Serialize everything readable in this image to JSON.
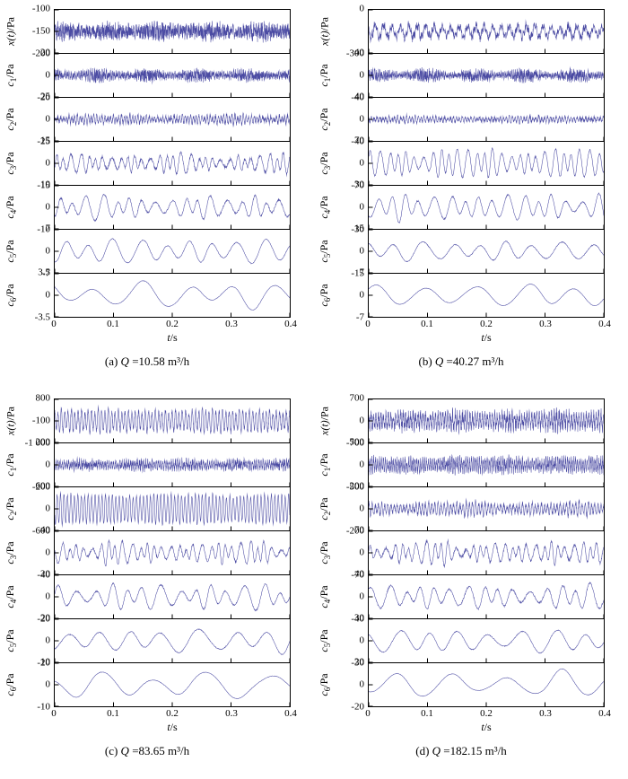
{
  "figure": {
    "line_color": "#4b4ba3",
    "axis_color": "#000000",
    "xlabel": {
      "var": "t",
      "unit": "/s"
    },
    "xticks": [
      "0",
      "0.1",
      "0.2",
      "0.3",
      "0.4"
    ],
    "x_range": [
      0,
      0.4
    ]
  },
  "chart_data": [
    {
      "type": "line",
      "caption": {
        "index": "(a)",
        "symbol": "Q",
        "rest": " =10.58 m³/h"
      },
      "subplots": [
        {
          "ylabel": {
            "var": "x(t)",
            "sub": "",
            "unit": "/Pa"
          },
          "yticks": [
            "-100",
            "-150",
            "-200"
          ],
          "ylim": [
            -200,
            -100
          ],
          "center": -150,
          "gen": {
            "points": 1400,
            "cycles": 90,
            "amp": 0.12,
            "mod": 0.3,
            "noise": 0.42,
            "nmod": 0.3
          }
        },
        {
          "ylabel": {
            "var": "c",
            "sub": "1",
            "unit": "/Pa"
          },
          "yticks": [
            "20",
            "0",
            "-20"
          ],
          "ylim": [
            -20,
            20
          ],
          "gen": {
            "points": 1400,
            "cycles": 120,
            "amp": 0.1,
            "mod": 0.4,
            "noise": 0.3,
            "nmod": 0.55
          }
        },
        {
          "ylabel": {
            "var": "c",
            "sub": "2",
            "unit": "/Pa"
          },
          "yticks": [
            "25",
            "0",
            "-25"
          ],
          "ylim": [
            -25,
            25
          ],
          "gen": {
            "points": 1200,
            "cycles": 85,
            "amp": 0.2,
            "amp2": 0.07,
            "cycles2": 58,
            "mod": 0.55,
            "noise": 0.1,
            "nmod": 0.3
          }
        },
        {
          "ylabel": {
            "var": "c",
            "sub": "3",
            "unit": "/Pa"
          },
          "yticks": [
            "15",
            "0",
            "-15"
          ],
          "ylim": [
            -15,
            15
          ],
          "gen": {
            "points": 900,
            "cycles": 30,
            "amp": 0.38,
            "amp2": 0.15,
            "cycles2": 21,
            "mod": 0.45,
            "jitter": 1.4,
            "noise": 0.06
          }
        },
        {
          "ylabel": {
            "var": "c",
            "sub": "4",
            "unit": "/Pa"
          },
          "yticks": [
            "10",
            "0",
            "-10"
          ],
          "ylim": [
            -10,
            10
          ],
          "gen": {
            "points": 800,
            "cycles": 17,
            "amp": 0.45,
            "amp2": 0.18,
            "cycles2": 11,
            "mod": 0.4,
            "jitter": 1.2,
            "noise": 0.04
          }
        },
        {
          "ylabel": {
            "var": "c",
            "sub": "5",
            "unit": "/Pa"
          },
          "yticks": [
            "7",
            "0",
            "-7"
          ],
          "ylim": [
            -7,
            7
          ],
          "gen": {
            "points": 700,
            "cycles": 9.5,
            "amp": 0.5,
            "amp2": 0.15,
            "cycles2": 6,
            "mod": 0.35,
            "jitter": 0.8,
            "noise": 0.02
          }
        },
        {
          "ylabel": {
            "var": "c",
            "sub": "6",
            "unit": "/Pa"
          },
          "yticks": [
            "3.5",
            "0",
            "-3.5"
          ],
          "ylim": [
            -3.5,
            3.5
          ],
          "gen": {
            "points": 600,
            "cycles": 5.2,
            "amp": 0.5,
            "amp2": 0.2,
            "cycles2": 3.1,
            "mod": 0.35,
            "jitter": 0.6,
            "noise": 0.01
          }
        }
      ]
    },
    {
      "type": "line",
      "caption": {
        "index": "(b)",
        "symbol": "Q",
        "rest": " =40.27 m³/h"
      },
      "subplots": [
        {
          "ylabel": {
            "var": "x(t)",
            "sub": "",
            "unit": "/Pa"
          },
          "yticks": [
            "0",
            "-300"
          ],
          "ylim": [
            -300,
            0
          ],
          "center": -150,
          "gen": {
            "points": 1200,
            "cycles": 28,
            "amp": 0.3,
            "amp2": 0.12,
            "cycles2": 90,
            "mod": 0.4,
            "noise": 0.18,
            "nmod": 0.3
          }
        },
        {
          "ylabel": {
            "var": "c",
            "sub": "1",
            "unit": "/Pa"
          },
          "yticks": [
            "40",
            "0",
            "-40"
          ],
          "ylim": [
            -40,
            40
          ],
          "gen": {
            "points": 1400,
            "cycles": 130,
            "amp": 0.1,
            "mod": 0.4,
            "noise": 0.3,
            "nmod": 0.6
          }
        },
        {
          "ylabel": {
            "var": "c",
            "sub": "2",
            "unit": "/Pa"
          },
          "yticks": [
            "40",
            "0",
            "-40"
          ],
          "ylim": [
            -40,
            40
          ],
          "gen": {
            "points": 1200,
            "cycles": 80,
            "amp": 0.14,
            "amp2": 0.05,
            "cycles2": 55,
            "mod": 0.55,
            "noise": 0.08,
            "nmod": 0.4
          }
        },
        {
          "ylabel": {
            "var": "c",
            "sub": "3",
            "unit": "/Pa"
          },
          "yticks": [
            "70",
            "0",
            "-70"
          ],
          "ylim": [
            -70,
            70
          ],
          "gen": {
            "points": 900,
            "cycles": 27,
            "amp": 0.6,
            "amp2": 0.18,
            "cycles2": 19,
            "mod": 0.4,
            "jitter": 1.0,
            "noise": 0.04
          }
        },
        {
          "ylabel": {
            "var": "c",
            "sub": "4",
            "unit": "/Pa"
          },
          "yticks": [
            "30",
            "0",
            "-30"
          ],
          "ylim": [
            -30,
            30
          ],
          "gen": {
            "points": 800,
            "cycles": 16,
            "amp": 0.55,
            "amp2": 0.2,
            "cycles2": 10,
            "mod": 0.45,
            "jitter": 1.0,
            "noise": 0.03
          }
        },
        {
          "ylabel": {
            "var": "c",
            "sub": "5",
            "unit": "/Pa"
          },
          "yticks": [
            "15",
            "0",
            "-15"
          ],
          "ylim": [
            -15,
            15
          ],
          "gen": {
            "points": 700,
            "cycles": 8.5,
            "amp": 0.42,
            "amp2": 0.12,
            "cycles2": 5.2,
            "mod": 0.4,
            "jitter": 0.7,
            "noise": 0.02
          }
        },
        {
          "ylabel": {
            "var": "c",
            "sub": "6",
            "unit": "/Pa"
          },
          "yticks": [
            "7",
            "0",
            "-7"
          ],
          "ylim": [
            -7,
            7
          ],
          "gen": {
            "points": 600,
            "cycles": 4.8,
            "amp": 0.5,
            "amp2": 0.15,
            "cycles2": 2.9,
            "mod": 0.35,
            "jitter": 0.5,
            "noise": 0.01
          }
        }
      ]
    },
    {
      "type": "line",
      "caption": {
        "index": "(c)",
        "symbol": "Q",
        "rest": " =83.65 m³/h"
      },
      "subplots": [
        {
          "ylabel": {
            "var": "x(t)",
            "sub": "",
            "unit": "/Pa"
          },
          "yticks": [
            "800",
            "-100",
            "-1 000"
          ],
          "ylim": [
            -1000,
            800
          ],
          "center": -100,
          "gen": {
            "points": 1400,
            "cycles": 70,
            "amp": 0.5,
            "amp2": 0.1,
            "cycles2": 45,
            "mod": 0.25,
            "noise": 0.12,
            "nmod": 0.3
          }
        },
        {
          "ylabel": {
            "var": "c",
            "sub": "1",
            "unit": "/Pa"
          },
          "yticks": [
            "200",
            "0",
            "-200"
          ],
          "ylim": [
            -200,
            200
          ],
          "gen": {
            "points": 1400,
            "cycles": 110,
            "amp": 0.18,
            "mod": 0.35,
            "noise": 0.22,
            "nmod": 0.5
          }
        },
        {
          "ylabel": {
            "var": "c",
            "sub": "2",
            "unit": "/Pa"
          },
          "yticks": [
            "600",
            "0",
            "-600"
          ],
          "ylim": [
            -600,
            600
          ],
          "gen": {
            "points": 1300,
            "cycles": 68,
            "amp": 0.7,
            "amp2": 0.06,
            "cycles2": 40,
            "mod": 0.2,
            "noise": 0.05
          }
        },
        {
          "ylabel": {
            "var": "c",
            "sub": "3",
            "unit": "/Pa"
          },
          "yticks": [
            "40",
            "0",
            "-40"
          ],
          "ylim": [
            -40,
            40
          ],
          "gen": {
            "points": 900,
            "cycles": 30,
            "amp": 0.45,
            "amp2": 0.2,
            "cycles2": 20,
            "mod": 0.5,
            "jitter": 1.4,
            "noise": 0.05
          }
        },
        {
          "ylabel": {
            "var": "c",
            "sub": "4",
            "unit": "/Pa"
          },
          "yticks": [
            "20",
            "0",
            "-20"
          ],
          "ylim": [
            -20,
            20
          ],
          "gen": {
            "points": 800,
            "cycles": 14,
            "amp": 0.5,
            "amp2": 0.2,
            "cycles2": 9,
            "mod": 0.45,
            "jitter": 1.1,
            "noise": 0.03
          }
        },
        {
          "ylabel": {
            "var": "c",
            "sub": "5",
            "unit": "/Pa"
          },
          "yticks": [
            "20",
            "0",
            "-20"
          ],
          "ylim": [
            -20,
            20
          ],
          "gen": {
            "points": 700,
            "cycles": 7,
            "amp": 0.5,
            "amp2": 0.18,
            "cycles2": 4.3,
            "mod": 0.4,
            "jitter": 0.8,
            "noise": 0.02
          }
        },
        {
          "ylabel": {
            "var": "c",
            "sub": "6",
            "unit": "/Pa"
          },
          "yticks": [
            "10",
            "0",
            "-10"
          ],
          "ylim": [
            -10,
            10
          ],
          "gen": {
            "points": 600,
            "cycles": 4.2,
            "amp": 0.55,
            "amp2": 0.2,
            "cycles2": 2.5,
            "mod": 0.4,
            "jitter": 0.6,
            "noise": 0.01
          }
        }
      ]
    },
    {
      "type": "line",
      "caption": {
        "index": "(d)",
        "symbol": "Q",
        "rest": " =182.15 m³/h"
      },
      "subplots": [
        {
          "ylabel": {
            "var": "x(t)",
            "sub": "",
            "unit": "/Pa"
          },
          "yticks": [
            "700",
            "0",
            "-700"
          ],
          "ylim": [
            -700,
            700
          ],
          "gen": {
            "points": 1500,
            "cycles": 95,
            "amp": 0.35,
            "mod": 0.3,
            "noise": 0.3,
            "nmod": 0.3
          }
        },
        {
          "ylabel": {
            "var": "c",
            "sub": "1",
            "unit": "/Pa"
          },
          "yticks": [
            "500",
            "0",
            "-500"
          ],
          "ylim": [
            -500,
            500
          ],
          "gen": {
            "points": 1500,
            "cycles": 120,
            "amp": 0.3,
            "mod": 0.3,
            "noise": 0.25,
            "nmod": 0.35
          }
        },
        {
          "ylabel": {
            "var": "c",
            "sub": "2",
            "unit": "/Pa"
          },
          "yticks": [
            "200",
            "0",
            "-200"
          ],
          "ylim": [
            -200,
            200
          ],
          "gen": {
            "points": 1300,
            "cycles": 75,
            "amp": 0.3,
            "amp2": 0.08,
            "cycles2": 50,
            "mod": 0.5,
            "noise": 0.12,
            "nmod": 0.3
          }
        },
        {
          "ylabel": {
            "var": "c",
            "sub": "3",
            "unit": "/Pa"
          },
          "yticks": [
            "70",
            "0",
            "-70"
          ],
          "ylim": [
            -70,
            70
          ],
          "gen": {
            "points": 900,
            "cycles": 30,
            "amp": 0.45,
            "amp2": 0.2,
            "cycles2": 21,
            "mod": 0.5,
            "jitter": 1.4,
            "noise": 0.06
          }
        },
        {
          "ylabel": {
            "var": "c",
            "sub": "4",
            "unit": "/Pa"
          },
          "yticks": [
            "40",
            "0",
            "-40"
          ],
          "ylim": [
            -40,
            40
          ],
          "gen": {
            "points": 800,
            "cycles": 15,
            "amp": 0.5,
            "amp2": 0.2,
            "cycles2": 9.5,
            "mod": 0.45,
            "jitter": 1.1,
            "noise": 0.04
          }
        },
        {
          "ylabel": {
            "var": "c",
            "sub": "5",
            "unit": "/Pa"
          },
          "yticks": [
            "30",
            "0",
            "-30"
          ],
          "ylim": [
            -30,
            30
          ],
          "gen": {
            "points": 700,
            "cycles": 7.5,
            "amp": 0.5,
            "amp2": 0.15,
            "cycles2": 4.6,
            "mod": 0.4,
            "jitter": 0.8,
            "noise": 0.02
          }
        },
        {
          "ylabel": {
            "var": "c",
            "sub": "6",
            "unit": "/Pa"
          },
          "yticks": [
            "20",
            "0",
            "-20"
          ],
          "ylim": [
            -20,
            20
          ],
          "gen": {
            "points": 600,
            "cycles": 4.5,
            "amp": 0.55,
            "amp2": 0.2,
            "cycles2": 2.7,
            "mod": 0.4,
            "jitter": 0.6,
            "noise": 0.01
          }
        }
      ]
    }
  ]
}
